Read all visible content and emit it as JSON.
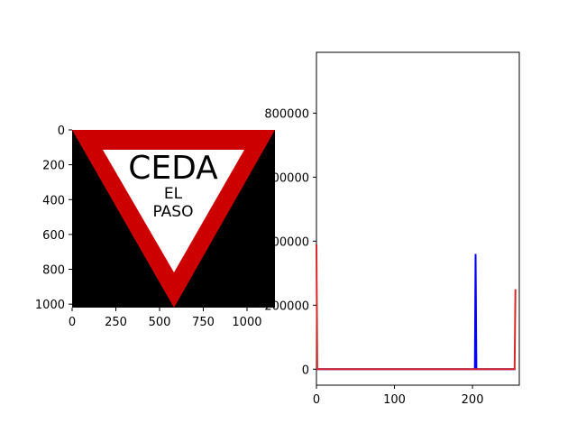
{
  "chart_data": [
    {
      "type": "image",
      "xlim": [
        0,
        1160
      ],
      "ylim": [
        0,
        1020
      ],
      "y_inverted": true,
      "xticks": [
        0,
        250,
        500,
        750,
        1000
      ],
      "yticks": [
        0,
        200,
        400,
        600,
        800,
        1000
      ],
      "image": {
        "background_color": "#000000",
        "sign_color": "#cc0000",
        "inner_color": "#ffffff",
        "text": {
          "line1": "CEDA",
          "line2": "EL",
          "line3": "PASO"
        }
      }
    },
    {
      "type": "line",
      "xlim": [
        0,
        260
      ],
      "ylim": [
        -50000,
        990000
      ],
      "xticks": [
        0,
        100,
        200
      ],
      "yticks": [
        0,
        200000,
        400000,
        600000,
        800000
      ],
      "series": [
        {
          "color": "#0000ff",
          "x": [
            0,
            1,
            203,
            204,
            205,
            255
          ],
          "y": [
            0,
            0,
            0,
            360000,
            0,
            0
          ]
        },
        {
          "color": "#d62728",
          "x": [
            0,
            1,
            254,
            255
          ],
          "y": [
            390000,
            0,
            0,
            250000
          ]
        }
      ]
    }
  ]
}
